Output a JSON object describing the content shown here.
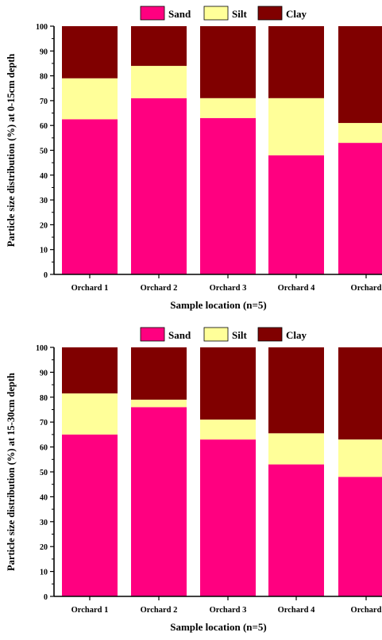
{
  "colors": {
    "Sand": "#ff0080",
    "Silt": "#ffff99",
    "Clay": "#800000"
  },
  "chart_data": [
    {
      "type": "bar",
      "stacked": true,
      "categories": [
        "Orchard 1",
        "Orchard 2",
        "Orchard 3",
        "Orchard 4",
        "Orchard"
      ],
      "series": [
        {
          "name": "Sand",
          "values": [
            62.5,
            71,
            63,
            48,
            53
          ]
        },
        {
          "name": "Silt",
          "values": [
            16.5,
            13,
            8,
            23,
            8
          ]
        },
        {
          "name": "Clay",
          "values": [
            21,
            16,
            29,
            29,
            39
          ]
        }
      ],
      "xlabel": "Sample location (n=5)",
      "ylabel": "Particle size distribution (%) at 0-15cm depth",
      "ylim": [
        0,
        100
      ],
      "yticks": [
        0,
        10,
        20,
        30,
        40,
        50,
        60,
        70,
        80,
        90,
        100
      ],
      "legend_position": "top"
    },
    {
      "type": "bar",
      "stacked": true,
      "categories": [
        "Orchard 1",
        "Orchard 2",
        "Orchard 3",
        "Orchard 4",
        "Orchard"
      ],
      "series": [
        {
          "name": "Sand",
          "values": [
            65,
            76,
            63,
            53,
            48
          ]
        },
        {
          "name": "Silt",
          "values": [
            16.5,
            3,
            8,
            12.5,
            15
          ]
        },
        {
          "name": "Clay",
          "values": [
            18.5,
            21,
            29,
            34.5,
            37
          ]
        }
      ],
      "xlabel": "Sample location (n=5)",
      "ylabel": "Particle size distribution (%) at 15-30cm depth",
      "ylim": [
        0,
        100
      ],
      "yticks": [
        0,
        10,
        20,
        30,
        40,
        50,
        60,
        70,
        80,
        90,
        100
      ],
      "legend_position": "top"
    }
  ]
}
